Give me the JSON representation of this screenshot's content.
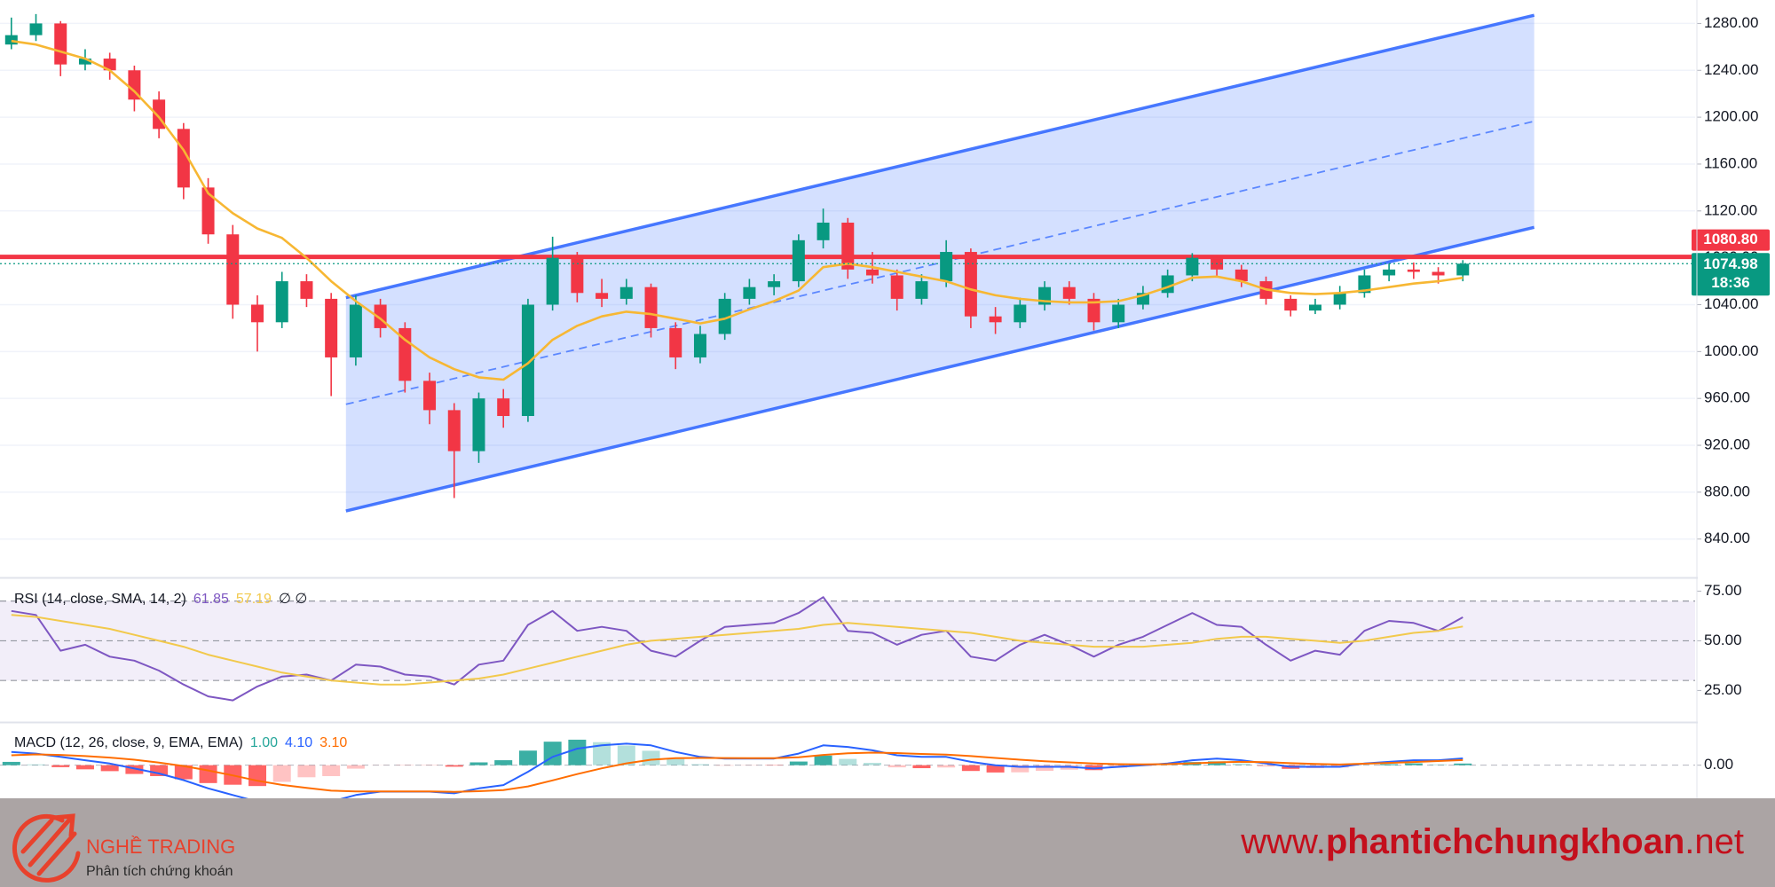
{
  "chart_data": [
    {
      "type": "candlestick",
      "ylim": [
        808,
        1300
      ],
      "yticks": [
        {
          "value": 1280,
          "label": "1280.00"
        },
        {
          "value": 1240,
          "label": "1240.00"
        },
        {
          "value": 1200,
          "label": "1200.00"
        },
        {
          "value": 1160,
          "label": "1160.00"
        },
        {
          "value": 1120,
          "label": "1120.00"
        },
        {
          "value": 1080,
          "label": "1080.00"
        },
        {
          "value": 1040,
          "label": "1040.00"
        },
        {
          "value": 1000,
          "label": "1000.00"
        },
        {
          "value": 960,
          "label": "960.00"
        },
        {
          "value": 920,
          "label": "920.00"
        },
        {
          "value": 880,
          "label": "880.00"
        },
        {
          "value": 840,
          "label": "840.00"
        }
      ],
      "grid": true,
      "up_color": "#089981",
      "down_color": "#f23645",
      "ohlc": {
        "open": [
          1262,
          1270,
          1280,
          1245,
          1250,
          1240,
          1215,
          1190,
          1140,
          1100,
          1040,
          1025,
          1060,
          1045,
          995,
          1040,
          1020,
          975,
          950,
          915,
          960,
          945,
          1040,
          1080,
          1050,
          1045,
          1055,
          1020,
          995,
          1015,
          1045,
          1055,
          1060,
          1095,
          1110,
          1070,
          1065,
          1045,
          1060,
          1085,
          1030,
          1025,
          1040,
          1055,
          1045,
          1025,
          1040,
          1050,
          1065,
          1080,
          1070,
          1060,
          1045,
          1035,
          1040,
          1050,
          1065,
          1070,
          1068,
          1065
        ],
        "high": [
          1285,
          1288,
          1282,
          1258,
          1255,
          1244,
          1222,
          1195,
          1148,
          1108,
          1048,
          1068,
          1066,
          1050,
          1048,
          1045,
          1025,
          982,
          956,
          965,
          968,
          1045,
          1098,
          1085,
          1062,
          1062,
          1058,
          1025,
          1022,
          1050,
          1062,
          1066,
          1100,
          1122,
          1114,
          1085,
          1070,
          1066,
          1095,
          1088,
          1038,
          1046,
          1060,
          1060,
          1050,
          1045,
          1056,
          1070,
          1084,
          1082,
          1074,
          1064,
          1048,
          1045,
          1056,
          1070,
          1075,
          1076,
          1072,
          1078
        ],
        "low": [
          1258,
          1265,
          1235,
          1240,
          1232,
          1205,
          1182,
          1130,
          1092,
          1028,
          1000,
          1020,
          1038,
          962,
          988,
          1012,
          965,
          938,
          875,
          905,
          935,
          940,
          1035,
          1042,
          1038,
          1040,
          1012,
          985,
          990,
          1010,
          1040,
          1048,
          1055,
          1088,
          1062,
          1058,
          1035,
          1040,
          1055,
          1020,
          1015,
          1020,
          1035,
          1040,
          1018,
          1020,
          1036,
          1046,
          1060,
          1064,
          1055,
          1040,
          1030,
          1032,
          1036,
          1046,
          1060,
          1062,
          1058,
          1060
        ],
        "close": [
          1270,
          1280,
          1245,
          1250,
          1240,
          1215,
          1190,
          1140,
          1100,
          1040,
          1025,
          1060,
          1045,
          995,
          1040,
          1020,
          975,
          950,
          915,
          960,
          945,
          1040,
          1080,
          1050,
          1045,
          1055,
          1020,
          995,
          1015,
          1045,
          1055,
          1060,
          1095,
          1110,
          1070,
          1065,
          1045,
          1060,
          1085,
          1030,
          1025,
          1040,
          1055,
          1045,
          1025,
          1040,
          1050,
          1065,
          1080,
          1070,
          1060,
          1045,
          1035,
          1040,
          1050,
          1065,
          1070,
          1068,
          1065,
          1074.98
        ]
      },
      "ma": {
        "color": "#f7b733",
        "values": [
          1265,
          1262,
          1256,
          1250,
          1240,
          1222,
          1200,
          1172,
          1135,
          1118,
          1105,
          1097,
          1080,
          1060,
          1043,
          1028,
          1010,
          995,
          985,
          978,
          976,
          990,
          1010,
          1022,
          1030,
          1034,
          1032,
          1028,
          1024,
          1028,
          1036,
          1043,
          1052,
          1072,
          1075,
          1072,
          1068,
          1064,
          1060,
          1053,
          1048,
          1045,
          1043,
          1042,
          1042,
          1043,
          1048,
          1055,
          1063,
          1064,
          1060,
          1053,
          1050,
          1049,
          1050,
          1052,
          1055,
          1058,
          1060,
          1063
        ]
      },
      "channel": {
        "color": "#2962ff",
        "fill": "#2962ff",
        "x": [
          13.6,
          61.9
        ],
        "upper": [
          1046,
          1287
        ],
        "lower": [
          864,
          1106
        ]
      },
      "hline": {
        "color": "#f23645",
        "value": 1080.8,
        "label": "1080.80"
      },
      "countdown": "18:36"
    },
    {
      "type": "line",
      "title": "RSI (14, close, SMA, 14, 2)",
      "extra": "∅ ∅",
      "ylim": [
        10,
        81
      ],
      "yticks": [
        {
          "value": 75,
          "label": "75.00"
        },
        {
          "value": 50,
          "label": "50.00"
        },
        {
          "value": 25,
          "label": "25.00"
        }
      ],
      "levels": [
        70,
        50,
        30
      ],
      "band_color": "#7e57c2",
      "series": [
        {
          "color": "#7e57c2",
          "values": [
            65,
            63,
            45,
            48,
            42,
            40,
            35,
            28,
            22,
            20,
            27,
            32,
            33,
            30,
            38,
            37,
            33,
            32,
            28,
            38,
            40,
            58,
            65,
            55,
            57,
            55,
            45,
            42,
            50,
            57,
            58,
            59,
            64,
            72,
            55,
            54,
            48,
            53,
            55,
            42,
            40,
            48,
            53,
            48,
            42,
            48,
            52,
            58,
            64,
            58,
            57,
            48,
            40,
            45,
            43,
            55,
            60,
            59,
            55,
            61.85
          ]
        },
        {
          "color": "#f2c94c",
          "values": [
            63,
            62,
            60,
            58,
            56,
            53,
            50,
            47,
            43,
            40,
            37,
            34,
            32,
            30,
            29,
            28,
            28,
            29,
            30,
            31,
            33,
            36,
            39,
            42,
            45,
            48,
            50,
            51,
            52,
            53,
            54,
            55,
            56,
            58,
            59,
            58,
            57,
            56,
            55,
            54,
            52,
            50,
            49,
            48,
            47,
            47,
            47,
            48,
            49,
            51,
            52,
            52,
            51,
            50,
            49,
            50,
            52,
            54,
            55,
            57.19
          ]
        }
      ]
    },
    {
      "type": "macd",
      "title": "MACD (12, 26, close, 9, EMA, EMA)",
      "ylim": [
        -20,
        25
      ],
      "yticks": [
        {
          "value": 0,
          "label": "0.00"
        }
      ],
      "histogram": {
        "color": "#26a69a",
        "down_color": "#ff5252",
        "last_label": "1.00",
        "values": [
          2,
          0.5,
          -1.2,
          -2.5,
          -3.6,
          -5.3,
          -6.6,
          -8.5,
          -10.8,
          -11.8,
          -12.6,
          -10.1,
          -7.3,
          -6.6,
          -2.1,
          -0.1,
          -0.1,
          -0.1,
          -0.9,
          1.7,
          3,
          8.8,
          14.2,
          15.4,
          13.9,
          11.9,
          8.7,
          3.8,
          0.6,
          -0.3,
          -0.2,
          -0.2,
          2.2,
          5.8,
          3.8,
          1.4,
          -1.3,
          -1.8,
          -1.4,
          -3.5,
          -4.4,
          -4.3,
          -3.4,
          -2.7,
          -3,
          -1.6,
          -0.5,
          0.4,
          1.9,
          2.3,
          1,
          -0.8,
          -2.2,
          -1.8,
          -1.4,
          0.1,
          0.6,
          1.1,
          0.5,
          1
        ]
      },
      "series": [
        {
          "color": "#2962ff",
          "last_label": "4.10",
          "values": [
            8,
            7,
            5,
            3,
            1,
            -2,
            -5,
            -9,
            -14,
            -18,
            -22,
            -22,
            -21,
            -22,
            -18,
            -16,
            -16,
            -16,
            -17,
            -14,
            -12,
            -4,
            5,
            10,
            12,
            13,
            12,
            8,
            5,
            4,
            4,
            4,
            7,
            12,
            11,
            9,
            6,
            5,
            5,
            2,
            0,
            -1,
            -1,
            -1,
            -2,
            -1,
            0,
            1,
            3,
            4,
            3,
            1,
            -1,
            -1,
            -1,
            1,
            2,
            3,
            3,
            4.1
          ]
        },
        {
          "color": "#ff6d00",
          "last_label": "3.10",
          "values": [
            6,
            6.5,
            6.2,
            5.5,
            4.6,
            3.3,
            1.6,
            -0.5,
            -3.2,
            -6.2,
            -9.4,
            -11.9,
            -13.7,
            -15.4,
            -15.9,
            -15.9,
            -15.9,
            -15.9,
            -16.1,
            -15.7,
            -15,
            -12.8,
            -9.2,
            -5.4,
            -1.9,
            1.1,
            3.3,
            4.2,
            4.4,
            4.3,
            4.2,
            4.2,
            4.8,
            6.2,
            7.2,
            7.6,
            7.3,
            6.8,
            6.4,
            5.5,
            4.4,
            3.3,
            2.4,
            1.7,
            1,
            0.6,
            0.5,
            0.6,
            1.1,
            1.7,
            2,
            1.8,
            1.2,
            0.8,
            0.4,
            0.9,
            1.4,
            1.9,
            2.5,
            3.1
          ]
        }
      ]
    }
  ],
  "footer": {
    "logo_title": "NGHỀ TRADING",
    "logo_subtitle": "Phân tích chứng khoán",
    "site": [
      "www.",
      "phantichchungkhoan",
      ".net"
    ]
  }
}
